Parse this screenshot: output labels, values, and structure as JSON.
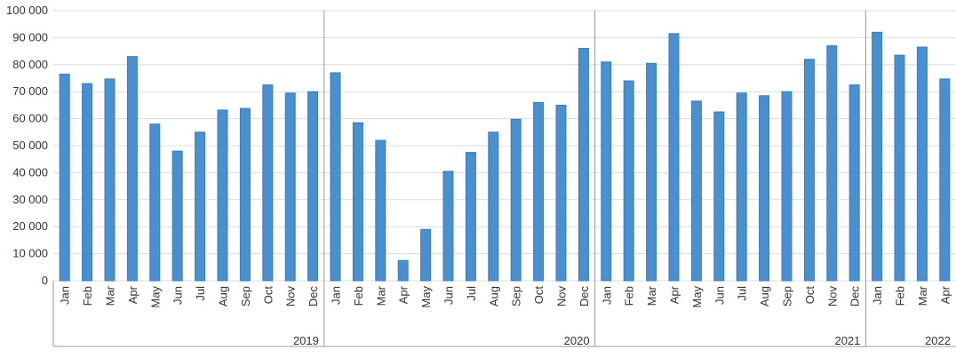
{
  "chart_data": {
    "type": "bar",
    "color": "#4a8fce",
    "grid": true,
    "ylim": [
      0,
      100000
    ],
    "yticks": [
      0,
      {
        "value": 10000,
        "label": "10 000"
      },
      {
        "value": 20000,
        "label": "20 000"
      },
      {
        "value": 30000,
        "label": "30 000"
      },
      {
        "value": 40000,
        "label": "40 000"
      },
      {
        "value": 50000,
        "label": "50 000"
      },
      {
        "value": 60000,
        "label": "60 000"
      },
      {
        "value": 70000,
        "label": "70 000"
      },
      {
        "value": 80000,
        "label": "80 000"
      },
      {
        "value": 90000,
        "label": "90 000"
      },
      {
        "value": 100000,
        "label": "100 000"
      }
    ],
    "groups": [
      {
        "name": "2019",
        "categories": [
          "Jan",
          "Feb",
          "Mar",
          "Apr",
          "May",
          "Jun",
          "Jul",
          "Aug",
          "Sep",
          "Oct",
          "Nov",
          "Dec"
        ],
        "values": [
          76500,
          73000,
          74700,
          83000,
          58000,
          48000,
          55000,
          63200,
          63800,
          72500,
          69500,
          70000
        ]
      },
      {
        "name": "2020",
        "categories": [
          "Jan",
          "Feb",
          "Mar",
          "Apr",
          "May",
          "Jun",
          "Jul",
          "Aug",
          "Sep",
          "Oct",
          "Nov",
          "Dec"
        ],
        "values": [
          77000,
          58500,
          52000,
          7500,
          19000,
          40500,
          47500,
          55000,
          59800,
          66000,
          65000,
          86000
        ]
      },
      {
        "name": "2021",
        "categories": [
          "Jan",
          "Feb",
          "Mar",
          "Apr",
          "May",
          "Jun",
          "Jul",
          "Aug",
          "Sep",
          "Oct",
          "Nov",
          "Dec"
        ],
        "values": [
          81000,
          74000,
          80500,
          91500,
          66500,
          62500,
          69500,
          68500,
          70000,
          82000,
          87000,
          72500
        ]
      },
      {
        "name": "2022",
        "categories": [
          "Jan",
          "Feb",
          "Mar",
          "Apr"
        ],
        "values": [
          92000,
          83500,
          86500,
          74700
        ]
      }
    ]
  }
}
